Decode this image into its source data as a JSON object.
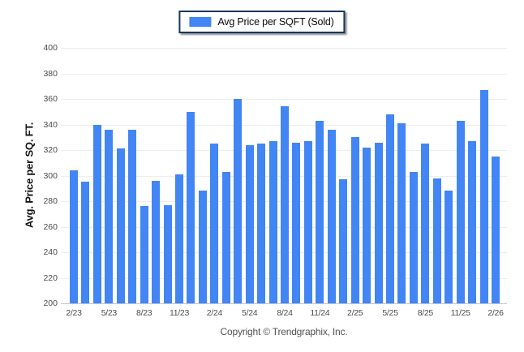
{
  "window": {
    "background_color": "#ffffff"
  },
  "legend": {
    "label": "Avg Price per SQFT (Sold)",
    "swatch_color": "#4285f4",
    "border_color": "#17375e",
    "position": "top-center"
  },
  "chart_data": {
    "type": "bar",
    "title": "",
    "xlabel": "",
    "ylabel": "Avg. Price per SQ. FT.",
    "ylim": [
      200,
      400
    ],
    "ytick_step": 20,
    "grid": true,
    "bar_color": "#4285f4",
    "x_label_every": 3,
    "categories": [
      "2/23",
      "3/23",
      "4/23",
      "5/23",
      "6/23",
      "7/23",
      "8/23",
      "9/23",
      "10/23",
      "11/23",
      "12/23",
      "1/24",
      "2/24",
      "3/24",
      "4/24",
      "5/24",
      "6/24",
      "7/24",
      "8/24",
      "9/24",
      "10/24",
      "11/24",
      "12/24",
      "1/25",
      "2/25",
      "3/25",
      "4/25",
      "5/25",
      "6/25",
      "7/25",
      "8/25",
      "9/25",
      "10/25",
      "11/25",
      "12/25",
      "1/26",
      "2/26"
    ],
    "shown_x_labels": [
      "2/23",
      "5/23",
      "8/23",
      "11/23",
      "2/24",
      "5/24",
      "8/24",
      "11/24",
      "2/25",
      "5/25",
      "8/25",
      "11/25",
      "2/26"
    ],
    "series": [
      {
        "name": "Avg Price per SQFT (Sold)",
        "values": [
          304,
          295,
          340,
          336,
          321,
          336,
          276,
          296,
          277,
          301,
          350,
          288,
          325,
          303,
          360,
          324,
          325,
          327,
          354,
          326,
          327,
          343,
          336,
          297,
          330,
          322,
          326,
          348,
          341,
          303,
          325,
          298,
          288,
          343,
          327,
          367,
          315
        ]
      }
    ]
  },
  "footer": {
    "copyright": "Copyright © Trendgraphix, Inc."
  }
}
